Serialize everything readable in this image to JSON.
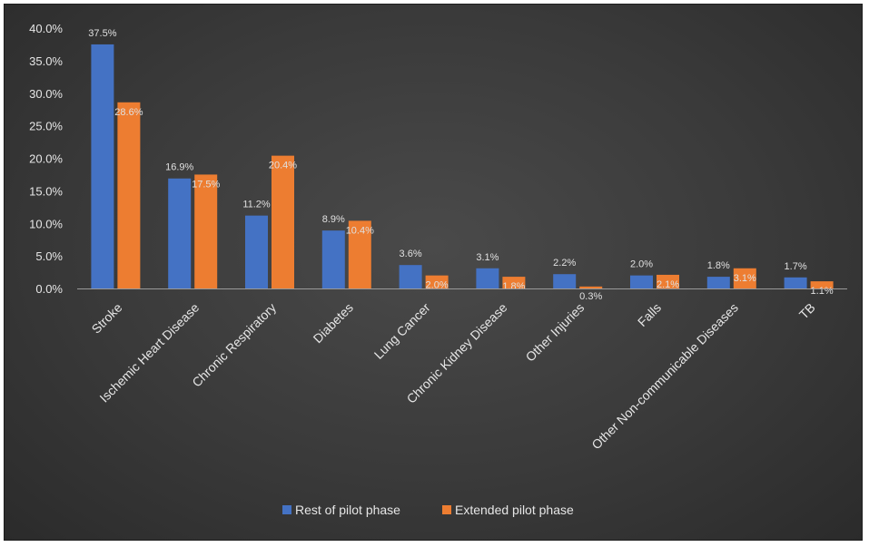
{
  "chart_data": {
    "type": "bar",
    "title": "",
    "xlabel": "",
    "ylabel": "",
    "ylim": [
      0,
      40
    ],
    "y_ticks": [
      "0.0%",
      "5.0%",
      "10.0%",
      "15.0%",
      "20.0%",
      "25.0%",
      "30.0%",
      "35.0%",
      "40.0%"
    ],
    "grid": false,
    "legend_position": "bottom",
    "categories": [
      "Stroke",
      "Ischemic Heart Disease",
      "Chronic Respiratory",
      "Diabetes",
      "Lung Cancer",
      "Chronic Kidney Disease",
      "Other Injuries",
      "Falls",
      "Other Non-communicable Diseases",
      "TB"
    ],
    "series": [
      {
        "name": "Rest of pilot phase",
        "color": "#4472c4",
        "values": [
          37.5,
          16.9,
          11.2,
          8.9,
          3.6,
          3.1,
          2.2,
          2.0,
          1.8,
          1.7
        ],
        "labels": [
          "37.5%",
          "16.9%",
          "11.2%",
          "8.9%",
          "3.6%",
          "3.1%",
          "2.2%",
          "2.0%",
          "1.8%",
          "1.7%"
        ]
      },
      {
        "name": "Extended pilot phase",
        "color": "#ed7d31",
        "values": [
          28.6,
          17.5,
          20.4,
          10.4,
          2.0,
          1.8,
          0.3,
          2.1,
          3.1,
          1.1
        ],
        "labels": [
          "28.6%",
          "17.5%",
          "20.4%",
          "10.4%",
          "2.0%",
          "1.8%",
          "0.3%",
          "2.1%",
          "3.1%",
          "1.1%"
        ]
      }
    ]
  }
}
